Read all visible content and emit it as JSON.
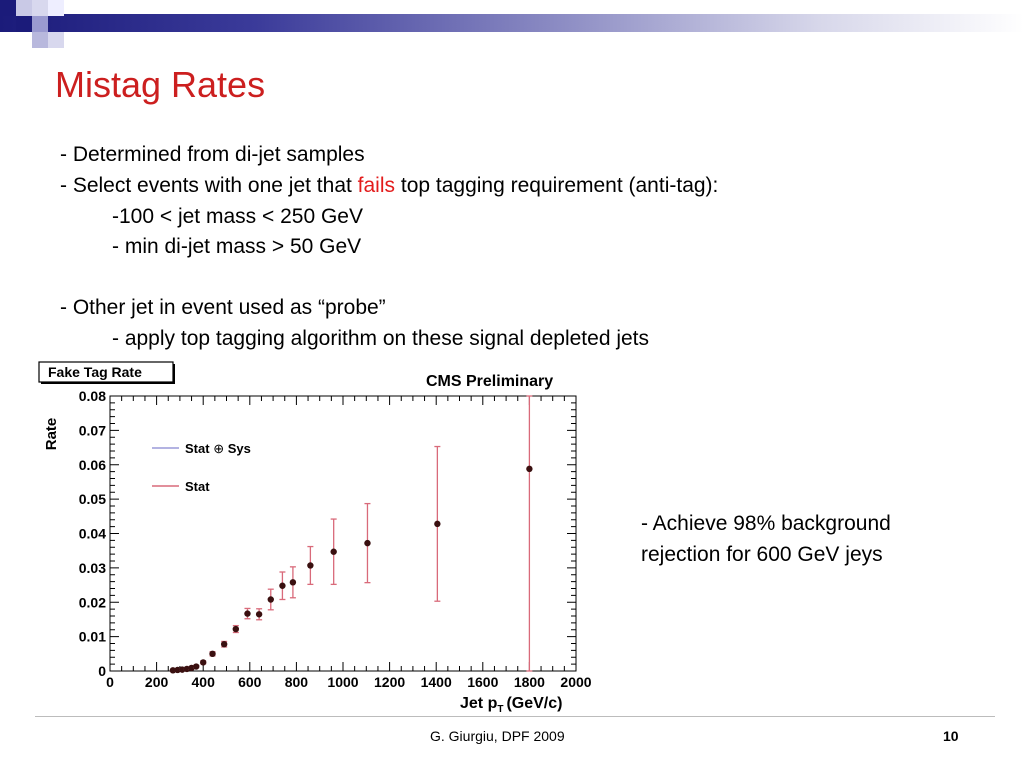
{
  "slide": {
    "title": "Mistag Rates",
    "bullets": {
      "b1": "- Determined from di-jet samples",
      "b2_pre": "- Select events with one jet that ",
      "b2_red": "fails",
      "b2_post": " top tagging requirement (anti-tag):",
      "b3": "-100 < jet mass < 250 GeV",
      "b4": "- min di-jet mass > 50 GeV",
      "b5": "- Other jet in event used as “probe”",
      "b6": "- apply top tagging algorithm on these signal depleted jets"
    },
    "side_note": {
      "line1": "- Achieve 98% background",
      "line2": "rejection for 600  GeV jeys"
    },
    "footer": "G. Giurgiu, DPF 2009",
    "page_number": "10",
    "colors": {
      "title": "#cc1f1f",
      "highlight": "#e31c1c",
      "banner_dark": "#1b1b7a"
    }
  },
  "chart_data": {
    "type": "scatter",
    "title": "Fake Tag Rate",
    "subtitle": "CMS Preliminary",
    "xlabel": "Jet p",
    "xlabel_sub": "T",
    "xlabel_unit": "(GeV/c)",
    "ylabel": "Rate",
    "xlim": [
      0,
      2000
    ],
    "ylim": [
      0,
      0.08
    ],
    "xticks": [
      "0",
      "200",
      "400",
      "600",
      "800",
      "1000",
      "1200",
      "1400",
      "1600",
      "1800",
      "2000"
    ],
    "yticks": [
      "0",
      "0.01",
      "0.02",
      "0.03",
      "0.04",
      "0.05",
      "0.06",
      "0.07",
      "0.08"
    ],
    "legend": [
      {
        "label_pre": "Stat",
        "label_symbol": "⊕",
        "label_post": "Sys",
        "color": "#9a9ad8"
      },
      {
        "label_pre": "Stat",
        "label_symbol": "",
        "label_post": "",
        "color": "#d96a7a"
      }
    ],
    "points": [
      {
        "x": 270,
        "y": 0.0002,
        "err": 0.0002
      },
      {
        "x": 290,
        "y": 0.0003,
        "err": 0.0002
      },
      {
        "x": 310,
        "y": 0.0004,
        "err": 0.0002
      },
      {
        "x": 330,
        "y": 0.0006,
        "err": 0.0002
      },
      {
        "x": 350,
        "y": 0.0009,
        "err": 0.0003
      },
      {
        "x": 370,
        "y": 0.0013,
        "err": 0.0003
      },
      {
        "x": 400,
        "y": 0.0025,
        "err": 0.0004
      },
      {
        "x": 440,
        "y": 0.005,
        "err": 0.0006
      },
      {
        "x": 490,
        "y": 0.0078,
        "err": 0.0008
      },
      {
        "x": 540,
        "y": 0.0122,
        "err": 0.001
      },
      {
        "x": 590,
        "y": 0.0167,
        "err": 0.0015
      },
      {
        "x": 640,
        "y": 0.0165,
        "err": 0.0016
      },
      {
        "x": 690,
        "y": 0.0208,
        "err": 0.003
      },
      {
        "x": 740,
        "y": 0.0248,
        "err": 0.004
      },
      {
        "x": 785,
        "y": 0.0258,
        "err": 0.0045
      },
      {
        "x": 860,
        "y": 0.0307,
        "err": 0.0055
      },
      {
        "x": 960,
        "y": 0.0347,
        "err": 0.0095
      },
      {
        "x": 1105,
        "y": 0.0372,
        "err": 0.0115
      },
      {
        "x": 1405,
        "y": 0.0428,
        "err": 0.0225
      },
      {
        "x": 1800,
        "y": 0.0588,
        "err": 0.06
      }
    ]
  }
}
